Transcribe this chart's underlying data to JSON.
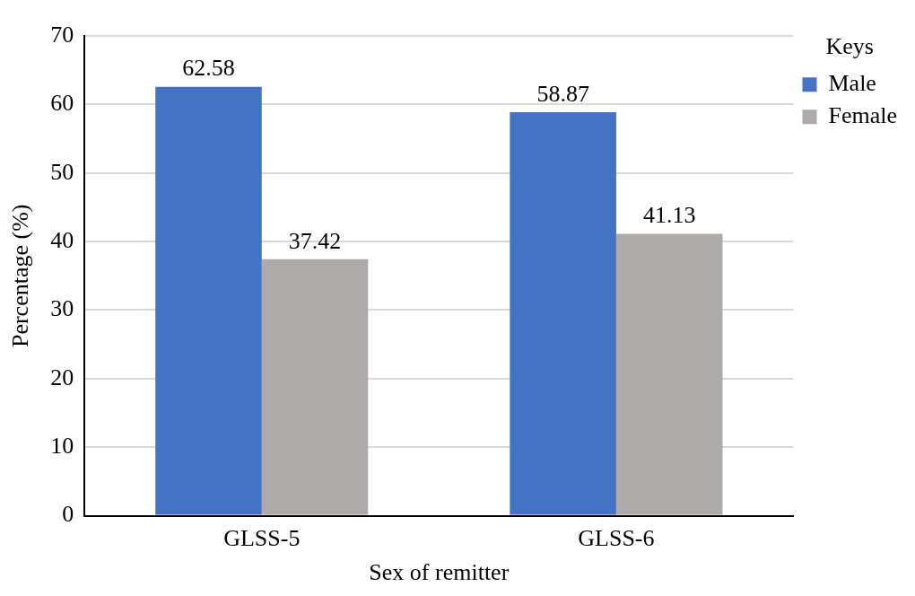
{
  "chart_data": {
    "type": "bar",
    "xlabel": "Sex of remitter",
    "ylabel": "Percentage (%)",
    "legend_title": "Keys",
    "categories": [
      "GLSS-5",
      "GLSS-6"
    ],
    "series": [
      {
        "name": "Male",
        "color": "#4472c4",
        "values": [
          62.58,
          58.87
        ]
      },
      {
        "name": "Female",
        "color": "#aeaaaa",
        "values": [
          37.42,
          41.13
        ]
      }
    ],
    "ylim": [
      0,
      70
    ],
    "yticks": [
      0,
      10,
      20,
      30,
      40,
      50,
      60,
      70
    ],
    "grid": "y",
    "legend": "top right",
    "data_labels": true
  }
}
